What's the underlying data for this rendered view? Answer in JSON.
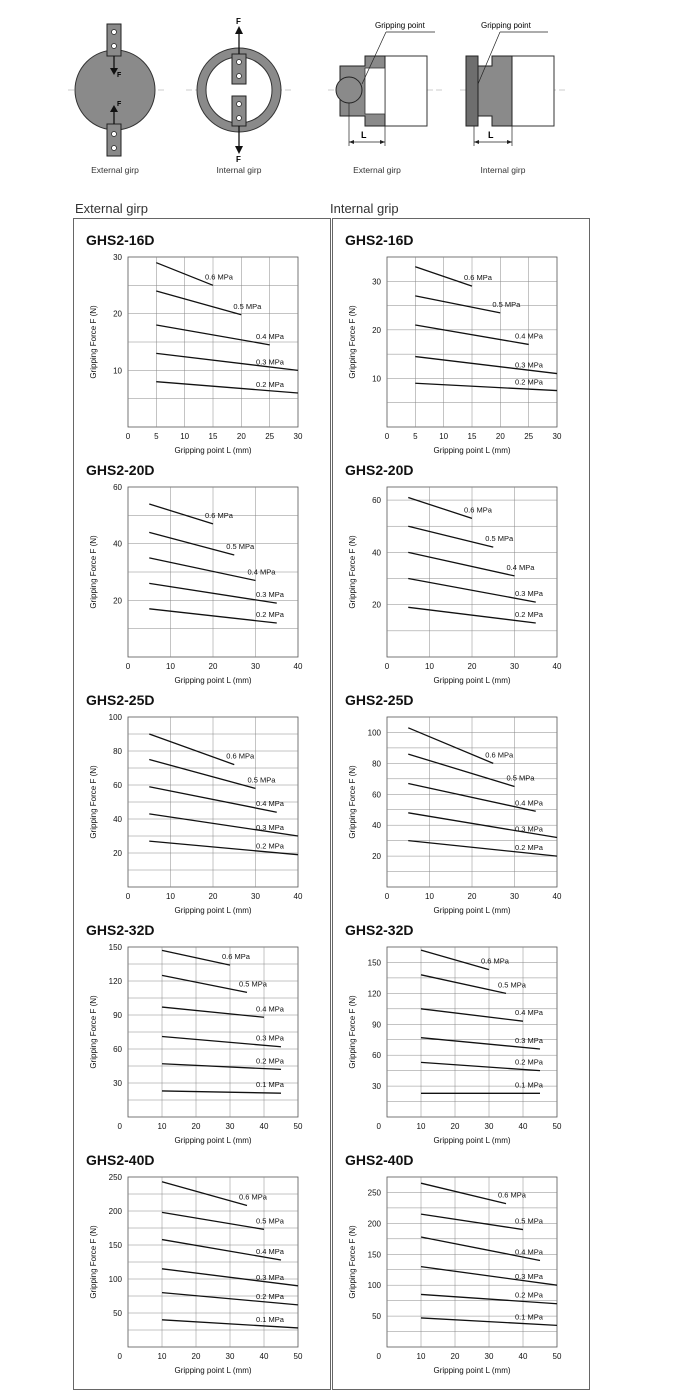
{
  "diagrams": {
    "captions": [
      "External girp",
      "Internal girp",
      "External girp",
      "Internal girp"
    ],
    "force_label": "F",
    "gripping_point_label": "Gripping point",
    "length_label": "L"
  },
  "sections": [
    {
      "title": "External girp",
      "charts": [
        {
          "title": "GHS2-16D",
          "chart_data": {
            "type": "line",
            "xlabel": "Gripping point  L  (mm)",
            "ylabel": "Gripping Force  F (N)",
            "xlim": [
              0,
              30
            ],
            "ylim": [
              0,
              30
            ],
            "xticks": [
              0,
              5,
              10,
              15,
              20,
              25,
              30
            ],
            "yticks": [
              10,
              20,
              30
            ],
            "grid": true,
            "series": [
              {
                "name": "0.6 MPa",
                "x": [
                  5,
                  15
                ],
                "y": [
                  29,
                  25
                ]
              },
              {
                "name": "0.5 MPa",
                "x": [
                  5,
                  20
                ],
                "y": [
                  24,
                  19.8
                ]
              },
              {
                "name": "0.4 MPa",
                "x": [
                  5,
                  25
                ],
                "y": [
                  18,
                  14.5
                ]
              },
              {
                "name": "0.3 MPa",
                "x": [
                  5,
                  30
                ],
                "y": [
                  13,
                  10
                ]
              },
              {
                "name": "0.2 MPa",
                "x": [
                  5,
                  30
                ],
                "y": [
                  8,
                  6
                ]
              }
            ]
          }
        },
        {
          "title": "GHS2-20D",
          "chart_data": {
            "type": "line",
            "xlabel": "Gripping point  L  (mm)",
            "ylabel": "Gripping Force  F (N)",
            "xlim": [
              0,
              40
            ],
            "ylim": [
              0,
              60
            ],
            "xticks": [
              0,
              10,
              20,
              30,
              40
            ],
            "yticks": [
              20,
              40,
              60
            ],
            "grid": true,
            "series": [
              {
                "name": "0.6 MPa",
                "x": [
                  5,
                  20
                ],
                "y": [
                  54,
                  47
                ]
              },
              {
                "name": "0.5 MPa",
                "x": [
                  5,
                  25
                ],
                "y": [
                  44,
                  36
                ]
              },
              {
                "name": "0.4 MPa",
                "x": [
                  5,
                  30
                ],
                "y": [
                  35,
                  27
                ]
              },
              {
                "name": "0.3 MPa",
                "x": [
                  5,
                  35
                ],
                "y": [
                  26,
                  19
                ]
              },
              {
                "name": "0.2 MPa",
                "x": [
                  5,
                  35
                ],
                "y": [
                  17,
                  12
                ]
              }
            ]
          }
        },
        {
          "title": "GHS2-25D",
          "chart_data": {
            "type": "line",
            "xlabel": "Gripping point  L  (mm)",
            "ylabel": "Gripping Force  F (N)",
            "xlim": [
              0,
              40
            ],
            "ylim": [
              0,
              100
            ],
            "xticks": [
              0,
              10,
              20,
              30,
              40
            ],
            "yticks": [
              20,
              40,
              60,
              80,
              100
            ],
            "grid": true,
            "series": [
              {
                "name": "0.6 MPa",
                "x": [
                  5,
                  25
                ],
                "y": [
                  90,
                  72
                ]
              },
              {
                "name": "0.5 MPa",
                "x": [
                  5,
                  30
                ],
                "y": [
                  75,
                  58
                ]
              },
              {
                "name": "0.4 MPa",
                "x": [
                  5,
                  35
                ],
                "y": [
                  59,
                  44
                ]
              },
              {
                "name": "0.3 MPa",
                "x": [
                  5,
                  40
                ],
                "y": [
                  43,
                  30
                ]
              },
              {
                "name": "0.2 MPa",
                "x": [
                  5,
                  40
                ],
                "y": [
                  27,
                  19
                ]
              }
            ]
          }
        },
        {
          "title": "GHS2-32D",
          "chart_data": {
            "type": "line",
            "xlabel": "Gripping point  L  (mm)",
            "ylabel": "Gripping Force  F (N)",
            "xlim": [
              0,
              50
            ],
            "ylim": [
              0,
              150
            ],
            "xticks": [
              10,
              20,
              30,
              40,
              50
            ],
            "yticks": [
              30,
              60,
              90,
              120,
              150
            ],
            "grid": true,
            "series": [
              {
                "name": "0.6 MPa",
                "x": [
                  10,
                  30
                ],
                "y": [
                  147,
                  134
                ]
              },
              {
                "name": "0.5 MPa",
                "x": [
                  10,
                  35
                ],
                "y": [
                  125,
                  110
                ]
              },
              {
                "name": "0.4 MPa",
                "x": [
                  10,
                  40
                ],
                "y": [
                  97,
                  88
                ]
              },
              {
                "name": "0.3 MPa",
                "x": [
                  10,
                  45
                ],
                "y": [
                  71,
                  62
                ]
              },
              {
                "name": "0.2 MPa",
                "x": [
                  10,
                  45
                ],
                "y": [
                  47,
                  42
                ]
              },
              {
                "name": "0.1 MPa",
                "x": [
                  10,
                  45
                ],
                "y": [
                  23,
                  21
                ]
              }
            ]
          }
        },
        {
          "title": "GHS2-40D",
          "chart_data": {
            "type": "line",
            "xlabel": "Gripping point  L  (mm)",
            "ylabel": "Gripping Force  F (N)",
            "xlim": [
              0,
              50
            ],
            "ylim": [
              0,
              250
            ],
            "xticks": [
              10,
              20,
              30,
              40,
              50
            ],
            "yticks": [
              50,
              100,
              150,
              200,
              250
            ],
            "grid": true,
            "series": [
              {
                "name": "0.6 MPa",
                "x": [
                  10,
                  35
                ],
                "y": [
                  243,
                  208
                ]
              },
              {
                "name": "0.5 MPa",
                "x": [
                  10,
                  40
                ],
                "y": [
                  198,
                  173
                ]
              },
              {
                "name": "0.4 MPa",
                "x": [
                  10,
                  45
                ],
                "y": [
                  158,
                  128
                ]
              },
              {
                "name": "0.3 MPa",
                "x": [
                  10,
                  50
                ],
                "y": [
                  115,
                  90
                ]
              },
              {
                "name": "0.2 MPa",
                "x": [
                  10,
                  50
                ],
                "y": [
                  80,
                  62
                ]
              },
              {
                "name": "0.1 MPa",
                "x": [
                  10,
                  50
                ],
                "y": [
                  40,
                  28
                ]
              }
            ]
          }
        }
      ]
    },
    {
      "title": "Internal grip",
      "charts": [
        {
          "title": "GHS2-16D",
          "chart_data": {
            "type": "line",
            "xlabel": "Gripping point  L  (mm)",
            "ylabel": "Gripping Force  F (N)",
            "xlim": [
              0,
              30
            ],
            "ylim": [
              0,
              35
            ],
            "xticks": [
              0,
              5,
              10,
              15,
              20,
              25,
              30
            ],
            "yticks": [
              10,
              20,
              30
            ],
            "grid": true,
            "series": [
              {
                "name": "0.6 MPa",
                "x": [
                  5,
                  15
                ],
                "y": [
                  33,
                  29
                ]
              },
              {
                "name": "0.5 MPa",
                "x": [
                  5,
                  20
                ],
                "y": [
                  27,
                  23.5
                ]
              },
              {
                "name": "0.4 MPa",
                "x": [
                  5,
                  25
                ],
                "y": [
                  21,
                  17
                ]
              },
              {
                "name": "0.3 MPa",
                "x": [
                  5,
                  30
                ],
                "y": [
                  14.5,
                  11
                ]
              },
              {
                "name": "0.2 MPa",
                "x": [
                  5,
                  30
                ],
                "y": [
                  9,
                  7.5
                ]
              }
            ]
          }
        },
        {
          "title": "GHS2-20D",
          "chart_data": {
            "type": "line",
            "xlabel": "Gripping point  L  (mm)",
            "ylabel": "Gripping Force  F (N)",
            "xlim": [
              0,
              40
            ],
            "ylim": [
              0,
              65
            ],
            "xticks": [
              0,
              10,
              20,
              30,
              40
            ],
            "yticks": [
              20,
              40,
              60
            ],
            "grid": true,
            "series": [
              {
                "name": "0.6 MPa",
                "x": [
                  5,
                  20
                ],
                "y": [
                  61,
                  53
                ]
              },
              {
                "name": "0.5 MPa",
                "x": [
                  5,
                  25
                ],
                "y": [
                  50,
                  42
                ]
              },
              {
                "name": "0.4 MPa",
                "x": [
                  5,
                  30
                ],
                "y": [
                  40,
                  31
                ]
              },
              {
                "name": "0.3 MPa",
                "x": [
                  5,
                  35
                ],
                "y": [
                  30,
                  21
                ]
              },
              {
                "name": "0.2 MPa",
                "x": [
                  5,
                  35
                ],
                "y": [
                  19,
                  13
                ]
              }
            ]
          }
        },
        {
          "title": "GHS2-25D",
          "chart_data": {
            "type": "line",
            "xlabel": "Gripping point  L  (mm)",
            "ylabel": "Gripping Force  F (N)",
            "xlim": [
              0,
              40
            ],
            "ylim": [
              0,
              110
            ],
            "xticks": [
              0,
              10,
              20,
              30,
              40
            ],
            "yticks": [
              20,
              40,
              60,
              80,
              100
            ],
            "grid": true,
            "series": [
              {
                "name": "0.6 MPa",
                "x": [
                  5,
                  25
                ],
                "y": [
                  103,
                  80
                ]
              },
              {
                "name": "0.5 MPa",
                "x": [
                  5,
                  30
                ],
                "y": [
                  86,
                  65
                ]
              },
              {
                "name": "0.4 MPa",
                "x": [
                  5,
                  35
                ],
                "y": [
                  67,
                  49
                ]
              },
              {
                "name": "0.3 MPa",
                "x": [
                  5,
                  40
                ],
                "y": [
                  48,
                  32
                ]
              },
              {
                "name": "0.2 MPa",
                "x": [
                  5,
                  40
                ],
                "y": [
                  30,
                  20
                ]
              }
            ]
          }
        },
        {
          "title": "GHS2-32D",
          "chart_data": {
            "type": "line",
            "xlabel": "Gripping point  L  (mm)",
            "ylabel": "Gripping Force  F (N)",
            "xlim": [
              0,
              50
            ],
            "ylim": [
              0,
              165
            ],
            "xticks": [
              10,
              20,
              30,
              40,
              50
            ],
            "yticks": [
              30,
              60,
              90,
              120,
              150
            ],
            "grid": true,
            "series": [
              {
                "name": "0.6 MPa",
                "x": [
                  10,
                  30
                ],
                "y": [
                  162,
                  143
                ]
              },
              {
                "name": "0.5 MPa",
                "x": [
                  10,
                  35
                ],
                "y": [
                  138,
                  120
                ]
              },
              {
                "name": "0.4 MPa",
                "x": [
                  10,
                  40
                ],
                "y": [
                  105,
                  93
                ]
              },
              {
                "name": "0.3 MPa",
                "x": [
                  10,
                  45
                ],
                "y": [
                  77,
                  66
                ]
              },
              {
                "name": "0.2 MPa",
                "x": [
                  10,
                  45
                ],
                "y": [
                  53,
                  45
                ]
              },
              {
                "name": "0.1 MPa",
                "x": [
                  10,
                  45
                ],
                "y": [
                  23,
                  23
                ]
              }
            ]
          }
        },
        {
          "title": "GHS2-40D",
          "chart_data": {
            "type": "line",
            "xlabel": "Gripping point  L  (mm)",
            "ylabel": "Gripping Force  F (N)",
            "xlim": [
              0,
              50
            ],
            "ylim": [
              0,
              275
            ],
            "xticks": [
              10,
              20,
              30,
              40,
              50
            ],
            "yticks": [
              50,
              100,
              150,
              200,
              250
            ],
            "grid": true,
            "series": [
              {
                "name": "0.6 MPa",
                "x": [
                  10,
                  35
                ],
                "y": [
                  265,
                  232
                ]
              },
              {
                "name": "0.5 MPa",
                "x": [
                  10,
                  40
                ],
                "y": [
                  215,
                  190
                ]
              },
              {
                "name": "0.4 MPa",
                "x": [
                  10,
                  45
                ],
                "y": [
                  178,
                  140
                ]
              },
              {
                "name": "0.3 MPa",
                "x": [
                  10,
                  50
                ],
                "y": [
                  130,
                  100
                ]
              },
              {
                "name": "0.2 MPa",
                "x": [
                  10,
                  50
                ],
                "y": [
                  85,
                  70
                ]
              },
              {
                "name": "0.1 MPa",
                "x": [
                  10,
                  50
                ],
                "y": [
                  47,
                  35
                ]
              }
            ]
          }
        }
      ]
    }
  ]
}
